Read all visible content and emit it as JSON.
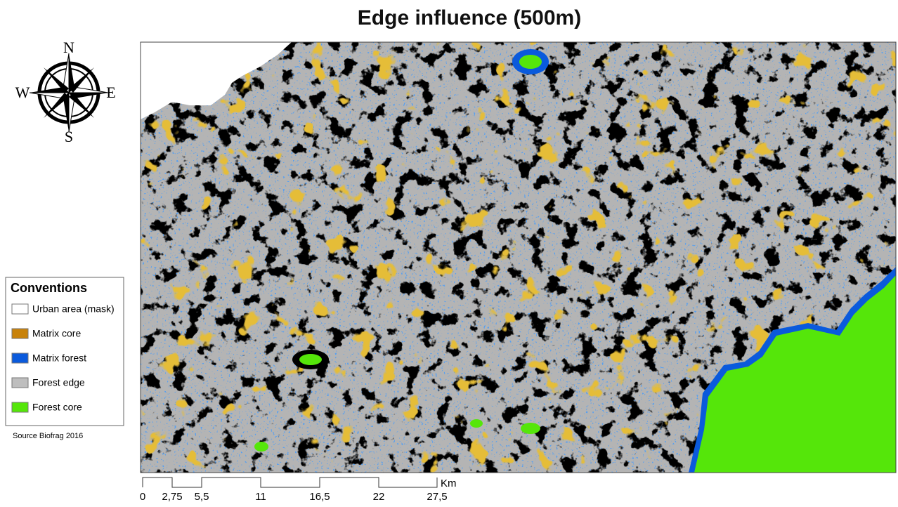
{
  "title": "Edge influence (500m)",
  "compass": {
    "north": "N",
    "east": "E",
    "south": "S",
    "west": "W"
  },
  "legend": {
    "title": "Conventions",
    "items": [
      {
        "label": "Urban area (mask)",
        "color": "#ffffff"
      },
      {
        "label": "Matrix core",
        "color": "#c8820a"
      },
      {
        "label": "Matrix forest",
        "color": "#0a5adc"
      },
      {
        "label": "Forest edge",
        "color": "#bebebe"
      },
      {
        "label": "Forest core",
        "color": "#55e60a"
      }
    ]
  },
  "source": "Source Biofrag 2016",
  "scale_bar": {
    "labels": [
      "0",
      "2,75",
      "5,5",
      "11",
      "16,5",
      "22",
      "27,5"
    ],
    "unit": "Km"
  }
}
